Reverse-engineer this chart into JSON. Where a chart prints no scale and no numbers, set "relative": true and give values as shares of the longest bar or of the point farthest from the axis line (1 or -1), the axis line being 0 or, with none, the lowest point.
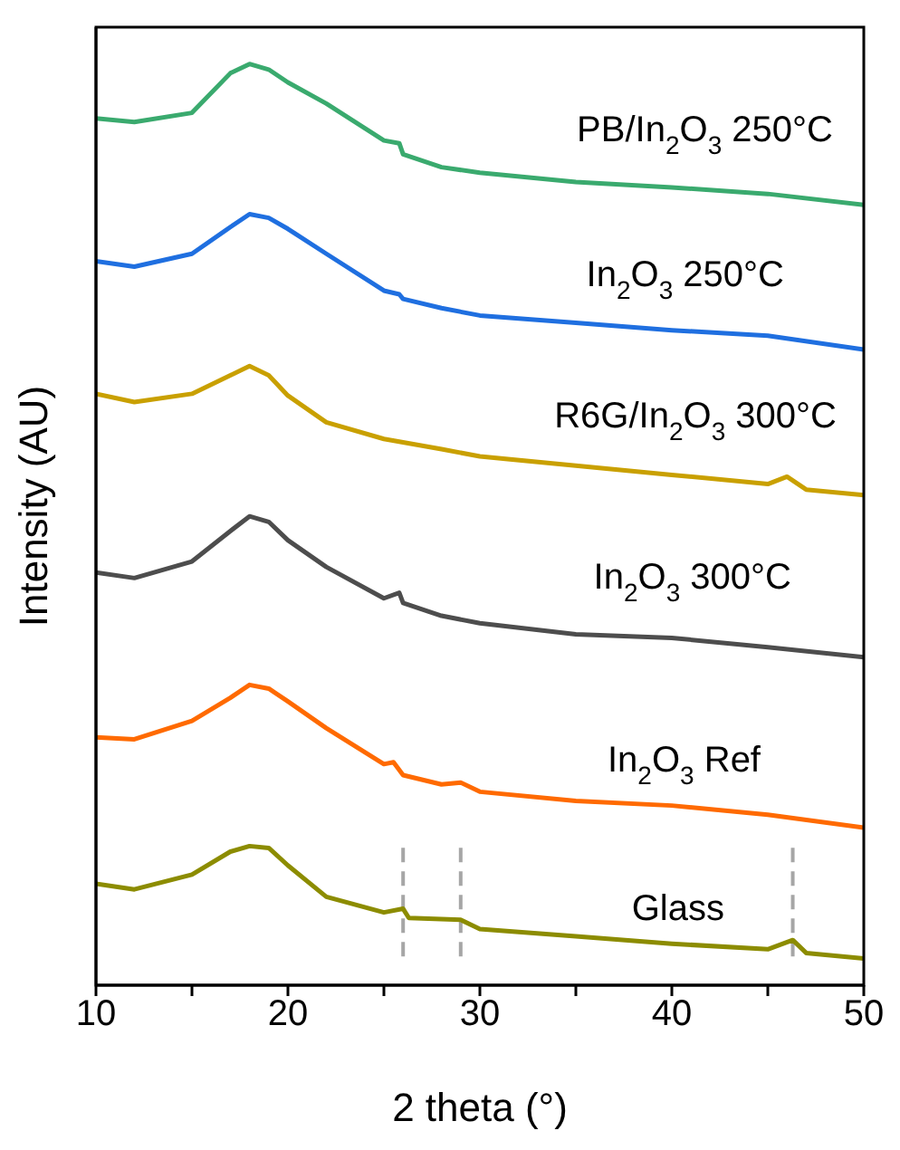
{
  "chart_data": {
    "type": "line",
    "relative": true,
    "xlabel": "2 theta (°)",
    "ylabel": "Intensity (AU)",
    "xlim": [
      10,
      50
    ],
    "xticks": [
      10,
      {
        "value": 15,
        "label": null
      },
      20,
      {
        "value": 25,
        "label": null
      },
      30,
      {
        "value": 35,
        "label": null
      },
      40,
      {
        "value": 45,
        "label": null
      },
      50
    ],
    "marker": "none",
    "line_style": "solid",
    "ref_lines": [
      {
        "axis": "x",
        "value": 26,
        "color": "#a6a6a6",
        "line_style": "dashed"
      },
      {
        "axis": "x",
        "value": 29,
        "color": "#a6a6a6",
        "line_style": "dashed"
      },
      {
        "axis": "x",
        "value": 46.3,
        "color": "#a6a6a6",
        "line_style": "dashed"
      }
    ],
    "series": [
      {
        "name": "PB/In$_{2}$O$_{3}$ 250°C",
        "color": "#3aaa6e",
        "x": [
          10,
          12,
          15,
          17,
          18,
          19,
          20,
          22,
          25,
          25.8,
          26,
          28,
          30,
          35,
          40,
          45,
          50
        ],
        "values": [
          0.941,
          0.937,
          0.947,
          0.99,
          1.0,
          0.994,
          0.98,
          0.957,
          0.917,
          0.914,
          0.902,
          0.888,
          0.882,
          0.872,
          0.866,
          0.859,
          0.847
        ]
      },
      {
        "name": "In$_{2}$O$_{3}$ 250°C",
        "color": "#1f6fe0",
        "x": [
          10,
          12,
          15,
          17,
          18,
          19,
          20,
          22,
          25,
          25.8,
          26,
          28,
          30,
          35,
          40,
          45,
          50
        ],
        "values": [
          0.786,
          0.78,
          0.794,
          0.823,
          0.837,
          0.833,
          0.821,
          0.794,
          0.754,
          0.75,
          0.745,
          0.735,
          0.727,
          0.719,
          0.711,
          0.705,
          0.69
        ]
      },
      {
        "name": "R6G/In$_{2}$O$_{3}$ 300°C",
        "color": "#c9a000",
        "x": [
          10,
          12,
          15,
          17,
          18,
          19,
          20,
          22,
          25,
          28,
          30,
          35,
          40,
          45,
          46,
          47,
          50
        ],
        "values": [
          0.642,
          0.633,
          0.642,
          0.662,
          0.672,
          0.662,
          0.64,
          0.611,
          0.593,
          0.582,
          0.574,
          0.564,
          0.554,
          0.544,
          0.552,
          0.538,
          0.532
        ]
      },
      {
        "name": "In$_{2}$O$_{3}$ 300°C",
        "color": "#4d4d4d",
        "x": [
          10,
          12,
          15,
          17,
          18,
          19,
          20,
          22,
          25,
          25.8,
          26,
          28,
          30,
          35,
          40,
          45,
          50
        ],
        "values": [
          0.448,
          0.442,
          0.46,
          0.493,
          0.509,
          0.503,
          0.483,
          0.454,
          0.42,
          0.426,
          0.415,
          0.401,
          0.393,
          0.381,
          0.377,
          0.367,
          0.356
        ]
      },
      {
        "name": "In$_{2}$O$_{3}$ Ref",
        "color": "#ff6a00",
        "x": [
          10,
          12,
          15,
          17,
          18,
          19,
          20,
          22,
          25,
          25.5,
          26,
          28,
          29,
          30,
          35,
          40,
          45,
          50
        ],
        "values": [
          0.269,
          0.267,
          0.287,
          0.312,
          0.326,
          0.322,
          0.308,
          0.279,
          0.24,
          0.242,
          0.228,
          0.218,
          0.22,
          0.21,
          0.2,
          0.195,
          0.185,
          0.171
        ]
      },
      {
        "name": "Glass",
        "color": "#8c8c00",
        "x": [
          10,
          12,
          15,
          17,
          18,
          19,
          20,
          22,
          25,
          26,
          26.3,
          29,
          30,
          35,
          40,
          45,
          46.3,
          47,
          50
        ],
        "values": [
          0.11,
          0.104,
          0.12,
          0.145,
          0.151,
          0.149,
          0.13,
          0.096,
          0.079,
          0.083,
          0.073,
          0.071,
          0.061,
          0.053,
          0.045,
          0.039,
          0.049,
          0.035,
          0.029
        ]
      }
    ]
  }
}
